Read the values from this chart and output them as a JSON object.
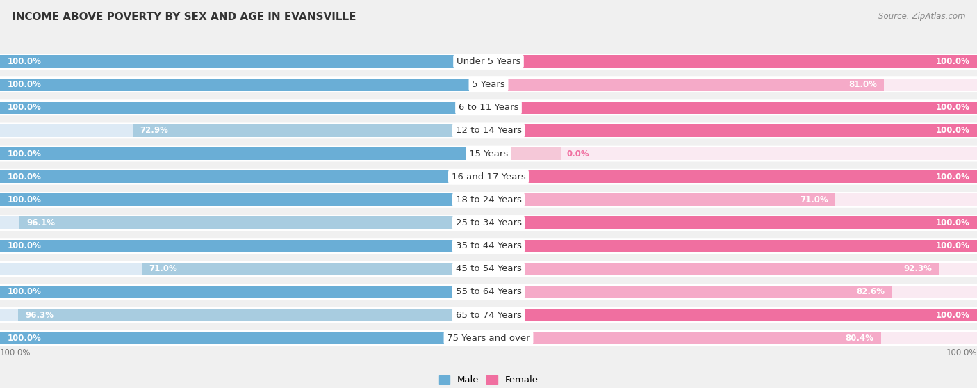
{
  "title": "INCOME ABOVE POVERTY BY SEX AND AGE IN EVANSVILLE",
  "source": "Source: ZipAtlas.com",
  "categories": [
    "Under 5 Years",
    "5 Years",
    "6 to 11 Years",
    "12 to 14 Years",
    "15 Years",
    "16 and 17 Years",
    "18 to 24 Years",
    "25 to 34 Years",
    "35 to 44 Years",
    "45 to 54 Years",
    "55 to 64 Years",
    "65 to 74 Years",
    "75 Years and over"
  ],
  "male": [
    100.0,
    100.0,
    100.0,
    72.9,
    100.0,
    100.0,
    100.0,
    96.1,
    100.0,
    71.0,
    100.0,
    96.3,
    100.0
  ],
  "female": [
    100.0,
    81.0,
    100.0,
    100.0,
    0.0,
    100.0,
    71.0,
    100.0,
    100.0,
    92.3,
    82.6,
    100.0,
    80.4
  ],
  "male_full_color": "#6aaed6",
  "male_partial_color": "#a8cce0",
  "female_full_color": "#f06fa0",
  "female_partial_color": "#f5aac8",
  "female_zero_color": "#f5c8d8",
  "row_bg_color": "#ffffff",
  "bg_color": "#f0f0f0",
  "label_color_white": "#ffffff",
  "label_color_blue": "#6aaed6",
  "label_color_pink": "#f06fa0",
  "label_color_dark": "#444444",
  "cat_label_color": "#333333",
  "bottom_label_color": "#777777",
  "legend_male": "Male",
  "legend_female": "Female",
  "label_fontsize": 8.5,
  "title_fontsize": 11,
  "source_fontsize": 8.5,
  "category_fontsize": 9.5
}
